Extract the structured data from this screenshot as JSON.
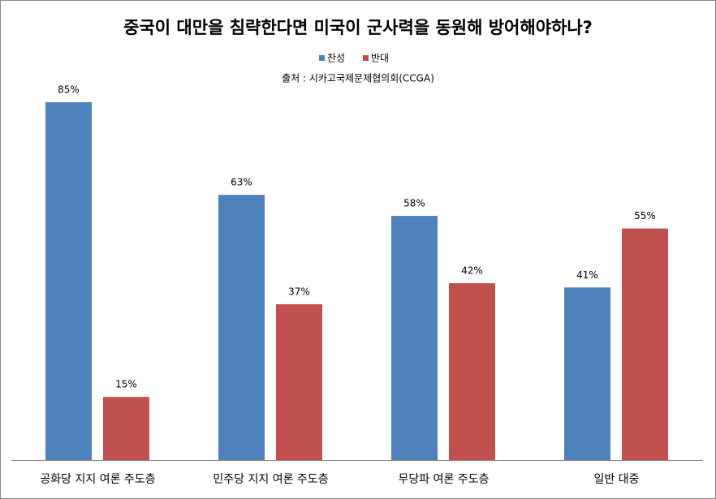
{
  "chart_data": {
    "type": "bar",
    "title": "중국이 대만을 침략한다면 미국이 군사력을 동원해 방어해야하나?",
    "subtitle": "출처 : 시카고국제문제협의회(CCGA)",
    "categories": [
      "공화당 지지 여론 주도층",
      "민주당 지지 여론 주도층",
      "무당파 여론 주도층",
      "일반 대중"
    ],
    "series": [
      {
        "name": "찬성",
        "color": "#4f81bd",
        "values": [
          85,
          63,
          58,
          41
        ],
        "value_labels": [
          "85%",
          "63%",
          "58%",
          "41%"
        ]
      },
      {
        "name": "반대",
        "color": "#c0504d",
        "values": [
          15,
          37,
          42,
          55
        ],
        "value_labels": [
          "15%",
          "37%",
          "42%",
          "55%"
        ]
      }
    ],
    "legend": "top"
  }
}
